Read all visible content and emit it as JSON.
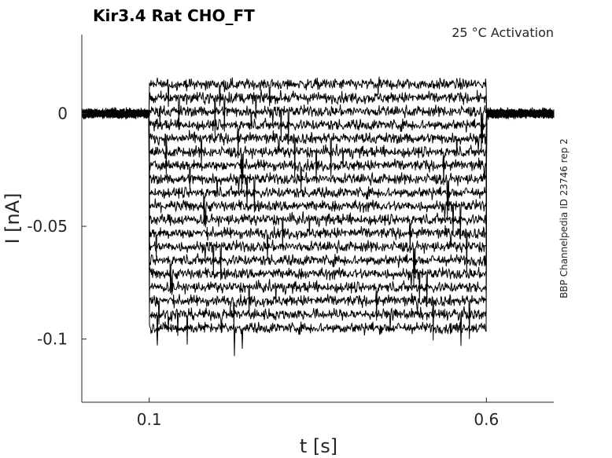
{
  "chart_data": {
    "type": "line",
    "title": "Kir3.4  Rat  CHO_FT",
    "annotation": "25 °C  Activation",
    "side_label": "BBP Channelpedia ID 23746 rep 2",
    "xlabel": "t [s]",
    "ylabel": "I [nA]",
    "xlim": [
      0.0,
      0.7
    ],
    "ylim": [
      -0.128,
      0.035
    ],
    "x_ticks": [
      0.1,
      0.6
    ],
    "x_tick_labels": [
      "0.1",
      "0.6"
    ],
    "y_ticks": [
      0,
      -0.05,
      -0.1
    ],
    "y_tick_labels": [
      "0",
      "-0.05",
      "-0.1"
    ],
    "grid": false,
    "legend": "none",
    "line_color": "#000000",
    "step_start": 0.1,
    "step_end": 0.6,
    "baseline": 0.0,
    "sweep_levels": [
      0.013,
      0.007,
      0.001,
      -0.005,
      -0.011,
      -0.017,
      -0.023,
      -0.029,
      -0.035,
      -0.041,
      -0.047,
      -0.053,
      -0.059,
      -0.065,
      -0.071,
      -0.077,
      -0.083,
      -0.089,
      -0.095
    ]
  }
}
